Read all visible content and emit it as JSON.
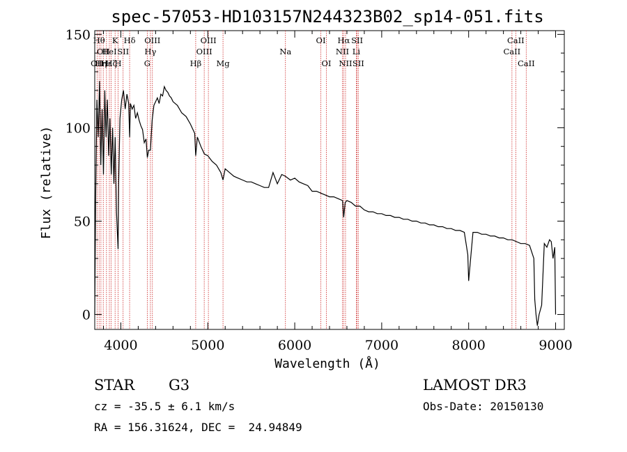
{
  "chart_data": {
    "type": "line",
    "title": "spec-57053-HD103157N244323B02_sp14-051.fits",
    "xlabel": "Wavelength (Å)",
    "ylabel": "Flux (relative)",
    "xlim": [
      3700,
      9100
    ],
    "ylim": [
      -8,
      152
    ],
    "x_ticks": [
      4000,
      5000,
      6000,
      7000,
      8000,
      9000
    ],
    "y_ticks": [
      0,
      50,
      100,
      150
    ],
    "grid": false,
    "series": [
      {
        "x": [
          3700,
          3710,
          3725,
          3740,
          3755,
          3770,
          3785,
          3800,
          3815,
          3830,
          3845,
          3860,
          3875,
          3890,
          3905,
          3920,
          3935,
          3950,
          3968,
          3975,
          3990,
          4010,
          4030,
          4050,
          4070,
          4090,
          4101,
          4110,
          4130,
          4150,
          4170,
          4190,
          4210,
          4230,
          4250,
          4270,
          4290,
          4305,
          4320,
          4340,
          4360,
          4380,
          4400,
          4420,
          4440,
          4460,
          4480,
          4500,
          4520,
          4540,
          4560,
          4580,
          4600,
          4650,
          4700,
          4750,
          4800,
          4850,
          4861,
          4880,
          4920,
          4960,
          5000,
          5050,
          5100,
          5150,
          5175,
          5200,
          5250,
          5300,
          5350,
          5400,
          5450,
          5500,
          5550,
          5600,
          5650,
          5700,
          5750,
          5800,
          5850,
          5893,
          5950,
          6000,
          6050,
          6100,
          6150,
          6200,
          6250,
          6300,
          6350,
          6400,
          6450,
          6500,
          6550,
          6563,
          6580,
          6600,
          6650,
          6700,
          6750,
          6800,
          6850,
          6900,
          6950,
          7000,
          7050,
          7100,
          7150,
          7200,
          7250,
          7300,
          7350,
          7400,
          7450,
          7500,
          7550,
          7600,
          7650,
          7700,
          7750,
          7800,
          7850,
          7900,
          7950,
          7990,
          8000,
          8050,
          8100,
          8150,
          8200,
          8250,
          8300,
          8350,
          8400,
          8450,
          8500,
          8550,
          8600,
          8650,
          8700,
          8750,
          8760,
          8775,
          8790,
          8810,
          8840,
          8870,
          8900,
          8930,
          8950,
          8970,
          8990,
          9000
        ],
        "y": [
          0,
          60,
          115,
          95,
          125,
          80,
          110,
          75,
          120,
          95,
          115,
          85,
          105,
          75,
          100,
          70,
          95,
          55,
          35,
          70,
          105,
          115,
          120,
          110,
          118,
          113,
          95,
          113,
          110,
          112,
          105,
          108,
          104,
          101,
          99,
          92,
          94,
          84,
          88,
          88,
          104,
          112,
          114,
          116,
          113,
          118,
          117,
          122,
          120,
          119,
          117,
          116,
          114,
          112,
          108,
          106,
          102,
          97,
          85,
          95,
          90,
          86,
          85,
          82,
          80,
          76,
          72,
          78,
          76,
          74,
          73,
          72,
          71,
          71,
          70,
          69,
          68,
          68,
          76,
          70,
          75,
          74,
          72,
          73,
          71,
          70,
          69,
          66,
          66,
          65,
          64,
          63,
          63,
          62,
          61,
          52,
          60,
          61,
          60,
          58,
          58,
          56,
          55,
          55,
          54,
          54,
          53,
          53,
          52,
          52,
          51,
          51,
          50,
          50,
          49,
          49,
          48,
          48,
          47,
          47,
          46,
          46,
          45,
          45,
          44,
          32,
          18,
          44,
          44,
          43,
          43,
          42,
          42,
          41,
          41,
          40,
          40,
          39,
          38,
          38,
          37,
          30,
          8,
          0,
          -6,
          0,
          5,
          38,
          36,
          40,
          39,
          30,
          36,
          0
        ]
      }
    ],
    "lines": [
      {
        "w": 3727,
        "label": "OII",
        "row": 3
      },
      {
        "w": 3750,
        "label": "Hθ",
        "row": 1
      },
      {
        "w": 3771,
        "label": "Hη",
        "row": 3
      },
      {
        "w": 3798,
        "label": "OII",
        "row": 2
      },
      {
        "w": 3835,
        "label": "Hε",
        "row": 3
      },
      {
        "w": 3868,
        "label": "HeI",
        "row": 2
      },
      {
        "w": 3889,
        "label": "Hζ",
        "row": 3
      },
      {
        "w": 3934,
        "label": "K",
        "row": 1
      },
      {
        "w": 3969,
        "label": "H",
        "row": 3
      },
      {
        "w": 4026,
        "label": "SII",
        "row": 2
      },
      {
        "w": 4101,
        "label": "Hδ",
        "row": 1
      },
      {
        "w": 4304,
        "label": "G",
        "row": 3
      },
      {
        "w": 4340,
        "label": "Hγ",
        "row": 2
      },
      {
        "w": 4363,
        "label": "OIII",
        "row": 1
      },
      {
        "w": 4861,
        "label": "Hβ",
        "row": 3
      },
      {
        "w": 4959,
        "label": "OIII",
        "row": 2
      },
      {
        "w": 5007,
        "label": "OIII",
        "row": 1
      },
      {
        "w": 5175,
        "label": "Mg",
        "row": 3
      },
      {
        "w": 5893,
        "label": "Na",
        "row": 2
      },
      {
        "w": 6300,
        "label": "OI",
        "row": 1
      },
      {
        "w": 6364,
        "label": "OI",
        "row": 3
      },
      {
        "w": 6548,
        "label": "NII",
        "row": 2
      },
      {
        "w": 6563,
        "label": "Hα",
        "row": 1
      },
      {
        "w": 6584,
        "label": "NII",
        "row": 3
      },
      {
        "w": 6708,
        "label": "Li",
        "row": 2
      },
      {
        "w": 6717,
        "label": "SII",
        "row": 1
      },
      {
        "w": 6731,
        "label": "SII",
        "row": 3
      },
      {
        "w": 8498,
        "label": "CaII",
        "row": 2
      },
      {
        "w": 8542,
        "label": "CaII",
        "row": 1
      },
      {
        "w": 8662,
        "label": "CaII",
        "row": 3
      }
    ]
  },
  "info": {
    "class": "STAR",
    "subclass": "G3",
    "survey": "LAMOST DR3",
    "cz": "cz = -35.5 ± 6.1 km/s",
    "obs_date": "Obs-Date: 20150130",
    "coords": "RA = 156.31624, DEC =  24.94849"
  },
  "colors": {
    "line_marker": "#cc2222",
    "spectrum": "#000000"
  }
}
